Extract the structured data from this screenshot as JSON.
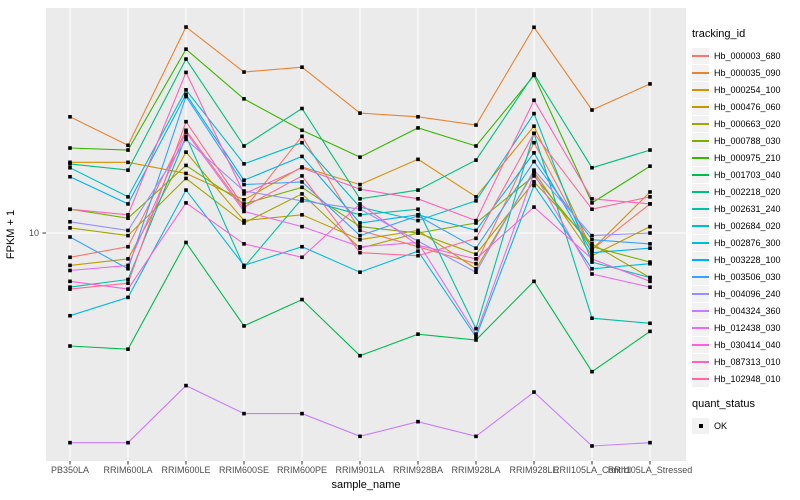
{
  "chart_data": {
    "type": "line",
    "title": "",
    "xlabel": "sample_name",
    "ylabel": "FPKM + 1",
    "y_scale": "log10",
    "ylim": [
      1.74,
      56.2
    ],
    "y_ticks": [
      10
    ],
    "y_tick_labels": [
      "10"
    ],
    "grid": "major-only",
    "panel_bg": "#EBEBEB",
    "grid_color": "#FFFFFF",
    "point_marker": {
      "shape": "square",
      "color": "#000000"
    },
    "categories": [
      "PB350LA",
      "RRIM600LA",
      "RRIM600LE",
      "RRIM600SE",
      "RRIM600PE",
      "RRIM901LA",
      "RRIM928BA",
      "RRIM928LA",
      "RRIM928LE",
      "RRII105LA_Control",
      "RRII105LA_Stressed"
    ],
    "series": [
      {
        "name": "Hb_000003_680",
        "color": "#F8766D",
        "values": [
          8.3,
          9.0,
          22.0,
          12.0,
          21.0,
          10.2,
          9.0,
          7.9,
          20.0,
          8.8,
          12.5
        ]
      },
      {
        "name": "Hb_000035_090",
        "color": "#EA8331",
        "values": [
          24.4,
          19.6,
          48.6,
          34.4,
          35.7,
          25.1,
          24.4,
          22.9,
          48.5,
          25.7,
          31.4
        ]
      },
      {
        "name": "Hb_000254_100",
        "color": "#D89000",
        "values": [
          17.2,
          17.2,
          15.8,
          12.9,
          16.6,
          14.5,
          17.6,
          13.2,
          22.7,
          8.8,
          13.7
        ]
      },
      {
        "name": "Hb_000476_060",
        "color": "#C09B00",
        "values": [
          7.8,
          8.2,
          18.6,
          11.0,
          11.5,
          9.5,
          10.2,
          7.6,
          16.0,
          8.4,
          10.5
        ]
      },
      {
        "name": "Hb_000663_020",
        "color": "#A3A500",
        "values": [
          10.4,
          9.8,
          15.2,
          10.8,
          13.5,
          8.9,
          10.0,
          8.5,
          14.8,
          9.2,
          7.1
        ]
      },
      {
        "name": "Hb_000788_030",
        "color": "#7CAE00",
        "values": [
          12.0,
          11.2,
          16.8,
          12.5,
          14.2,
          10.5,
          10.0,
          10.8,
          15.5,
          9.0,
          8.0
        ]
      },
      {
        "name": "Hb_000975_210",
        "color": "#39B600",
        "values": [
          19.2,
          18.9,
          41.0,
          28.0,
          22.0,
          17.9,
          22.4,
          19.5,
          33.5,
          12.6,
          16.7
        ]
      },
      {
        "name": "Hb_001703_040",
        "color": "#00BB4E",
        "values": [
          4.2,
          4.1,
          9.3,
          4.9,
          6.0,
          3.9,
          4.6,
          4.4,
          6.9,
          3.45,
          4.7
        ]
      },
      {
        "name": "Hb_002218_020",
        "color": "#00BF7D",
        "values": [
          17.0,
          16.2,
          38.0,
          19.5,
          26.0,
          13.0,
          13.9,
          17.5,
          33.9,
          16.5,
          18.9
        ]
      },
      {
        "name": "Hb_002631_240",
        "color": "#00C1A3",
        "values": [
          6.6,
          7.0,
          21.0,
          7.7,
          13.0,
          11.5,
          12.0,
          4.8,
          21.5,
          5.2,
          5.0
        ]
      },
      {
        "name": "Hb_002684_020",
        "color": "#00BFC4",
        "values": [
          16.5,
          13.2,
          30.0,
          17.0,
          20.0,
          12.2,
          11.0,
          12.8,
          25.0,
          8.0,
          7.1
        ]
      },
      {
        "name": "Hb_002876_300",
        "color": "#00BAE0",
        "values": [
          5.3,
          6.1,
          13.9,
          7.8,
          9.0,
          7.4,
          8.7,
          4.5,
          14.4,
          7.6,
          7.9
        ]
      },
      {
        "name": "Hb_003228_100",
        "color": "#00B0F6",
        "values": [
          15.4,
          12.5,
          29.0,
          15.0,
          18.0,
          10.8,
          11.5,
          10.2,
          18.5,
          8.6,
          8.9
        ]
      },
      {
        "name": "Hb_003506_030",
        "color": "#35A2FF",
        "values": [
          9.7,
          7.6,
          28.5,
          14.5,
          14.8,
          9.8,
          11.4,
          8.9,
          17.3,
          9.5,
          9.2
        ]
      },
      {
        "name": "Hb_004096_240",
        "color": "#9590FF",
        "values": [
          10.9,
          10.2,
          20.5,
          13.8,
          12.8,
          12.0,
          9.4,
          7.4,
          16.2,
          9.8,
          10.0
        ]
      },
      {
        "name": "Hb_004324_360",
        "color": "#C77CFF",
        "values": [
          2.0,
          2.0,
          3.1,
          2.5,
          2.5,
          2.1,
          2.35,
          2.1,
          2.95,
          1.95,
          2.0
        ]
      },
      {
        "name": "Hb_012438_030",
        "color": "#E76BF3",
        "values": [
          7.5,
          7.8,
          21.7,
          11.8,
          10.5,
          9.0,
          9.3,
          4.6,
          15.8,
          7.3,
          6.6
        ]
      },
      {
        "name": "Hb_030414_040",
        "color": "#FA62DB",
        "values": [
          6.9,
          6.5,
          12.6,
          9.2,
          8.3,
          12.5,
          9.1,
          8.2,
          12.2,
          8.2,
          6.9
        ]
      },
      {
        "name": "Hb_087313_010",
        "color": "#FF62BC",
        "values": [
          12.0,
          11.5,
          34.3,
          13.5,
          16.5,
          14.0,
          13.0,
          11.0,
          27.7,
          13.0,
          12.5
        ]
      },
      {
        "name": "Hb_102948_010",
        "color": "#FF6A98",
        "values": [
          6.5,
          6.8,
          23.5,
          12.2,
          15.5,
          8.6,
          8.4,
          9.6,
          21.5,
          12.0,
          13.2
        ]
      }
    ],
    "legend": {
      "title": "tracking_id",
      "position": "right"
    },
    "legend2": {
      "title": "quant_status",
      "items": [
        {
          "label": "OK",
          "marker": "black-square"
        }
      ]
    }
  },
  "axis_text_color": "#4D4D4D",
  "tick_color": "#333333"
}
